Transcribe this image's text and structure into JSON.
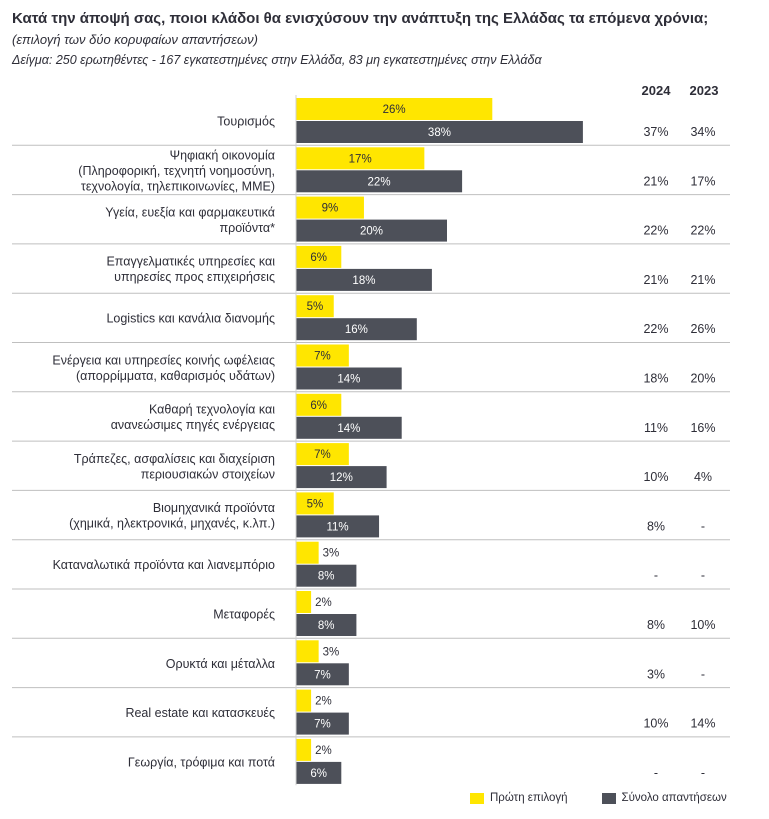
{
  "title": "Κατά την άποψή σας, ποιοι κλάδοι θα ενισχύσουν την ανάπτυξη της Ελλάδας τα επόμενα χρόνια;",
  "title_note": "(επιλογή των δύο κορυφαίων απαντήσεων)",
  "subtitle": "Δείγμα: 250 ερωτηθέντες - 167 εγκατεστημένες στην Ελλάδα, 83 μη εγκατεστημένες στην Ελλάδα",
  "column_headers": [
    "2024",
    "2023"
  ],
  "colors": {
    "first_choice": "#ffe600",
    "total": "#4d5059",
    "separator": "#bfbfbf"
  },
  "legend": [
    "Πρώτη επιλογή",
    "Σύνολο απαντήσεων"
  ],
  "chart_data": {
    "type": "bar",
    "orientation": "horizontal",
    "value_unit": "%",
    "categories": [
      [
        "Τουρισμός"
      ],
      [
        "Ψηφιακή οικονομία",
        "(Πληροφορική, τεχνητή νοημοσύνη,",
        "τεχνολογία, τηλεπικοινωνίες, ΜΜΕ)"
      ],
      [
        "Υγεία, ευεξία και φαρμακευτικά",
        "προϊόντα*"
      ],
      [
        "Επαγγελματικές υπηρεσίες και",
        "υπηρεσίες προς επιχειρήσεις"
      ],
      [
        "Logistics και κανάλια διανομής"
      ],
      [
        "Ενέργεια και υπηρεσίες κοινής ωφέλειας",
        "(απορρίμματα, καθαρισμός υδάτων)"
      ],
      [
        "Καθαρή τεχνολογία και",
        "ανανεώσιμες πηγές ενέργειας"
      ],
      [
        "Τράπεζες, ασφαλίσεις και διαχείριση",
        "περιουσιακών στοιχείων"
      ],
      [
        "Βιομηχανικά προϊόντα",
        "(χημικά, ηλεκτρονικά, μηχανές, κ.λπ.)"
      ],
      [
        "Καταναλωτικά προϊόντα και λιανεμπόριο"
      ],
      [
        "Μεταφορές"
      ],
      [
        "Ορυκτά και μέταλλα"
      ],
      [
        "Real estate και κατασκευές"
      ],
      [
        "Γεωργία, τρόφιμα και ποτά"
      ]
    ],
    "series": [
      {
        "name": "Πρώτη επιλογή",
        "values": [
          26,
          17,
          9,
          6,
          5,
          7,
          6,
          7,
          5,
          3,
          2,
          3,
          2,
          2
        ]
      },
      {
        "name": "Σύνολο απαντήσεων",
        "values": [
          38,
          22,
          20,
          18,
          16,
          14,
          14,
          12,
          11,
          8,
          8,
          7,
          7,
          6
        ]
      }
    ],
    "value_labels": {
      "first": [
        "26%",
        "17%",
        "9%",
        "6%",
        "5%",
        "7%",
        "6%",
        "7%",
        "5%",
        "3%",
        "2%",
        "3%",
        "2%",
        "2%"
      ],
      "total": [
        "38%",
        "22%",
        "20%",
        "18%",
        "16%",
        "14%",
        "14%",
        "12%",
        "11%",
        "8%",
        "8%",
        "7%",
        "7%",
        "6%"
      ]
    },
    "y2024": [
      "37%",
      "21%",
      "22%",
      "21%",
      "22%",
      "18%",
      "11%",
      "10%",
      "8%",
      "-",
      "8%",
      "3%",
      "10%",
      "-"
    ],
    "y2023": [
      "34%",
      "17%",
      "22%",
      "21%",
      "26%",
      "20%",
      "16%",
      "4%",
      "-",
      "-",
      "10%",
      "-",
      "14%",
      "-"
    ],
    "xlim": [
      0,
      38
    ]
  }
}
